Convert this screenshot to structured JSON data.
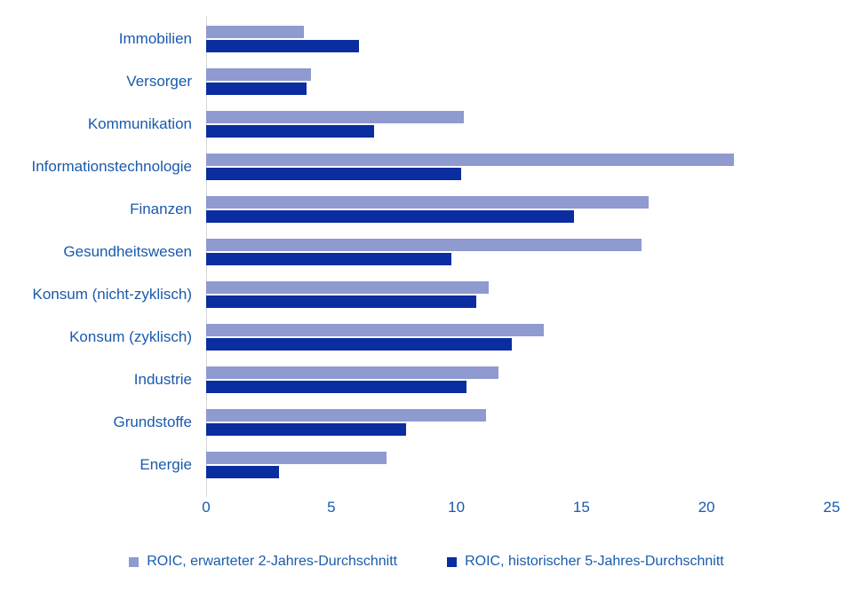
{
  "chart_data": {
    "type": "bar",
    "orientation": "horizontal",
    "title": "",
    "xlabel": "",
    "ylabel": "",
    "xlim": [
      0,
      25
    ],
    "xticks": [
      0,
      5,
      10,
      15,
      20,
      25
    ],
    "grid": "zero-line-only",
    "legend_position": "bottom",
    "text_color": "#1a5aac",
    "categories": [
      "Immobilien",
      "Versorger",
      "Kommunikation",
      "Informationstechnologie",
      "Finanzen",
      "Gesundheitswesen",
      "Konsum (nicht-zyklisch)",
      "Konsum (zyklisch)",
      "Industrie",
      "Grundstoffe",
      "Energie"
    ],
    "series": [
      {
        "name": "ROIC, erwarteter 2-Jahres-Durchschnitt",
        "color": "#8e9ad0",
        "values": [
          3.9,
          4.2,
          10.3,
          21.1,
          17.7,
          17.4,
          11.3,
          13.5,
          11.7,
          11.2,
          7.2
        ]
      },
      {
        "name": "ROIC, historischer 5-Jahres-Durchschnitt",
        "color": "#0a2da0",
        "values": [
          6.1,
          4.0,
          6.7,
          10.2,
          14.7,
          9.8,
          10.8,
          12.2,
          10.4,
          8.0,
          2.9
        ]
      }
    ]
  }
}
